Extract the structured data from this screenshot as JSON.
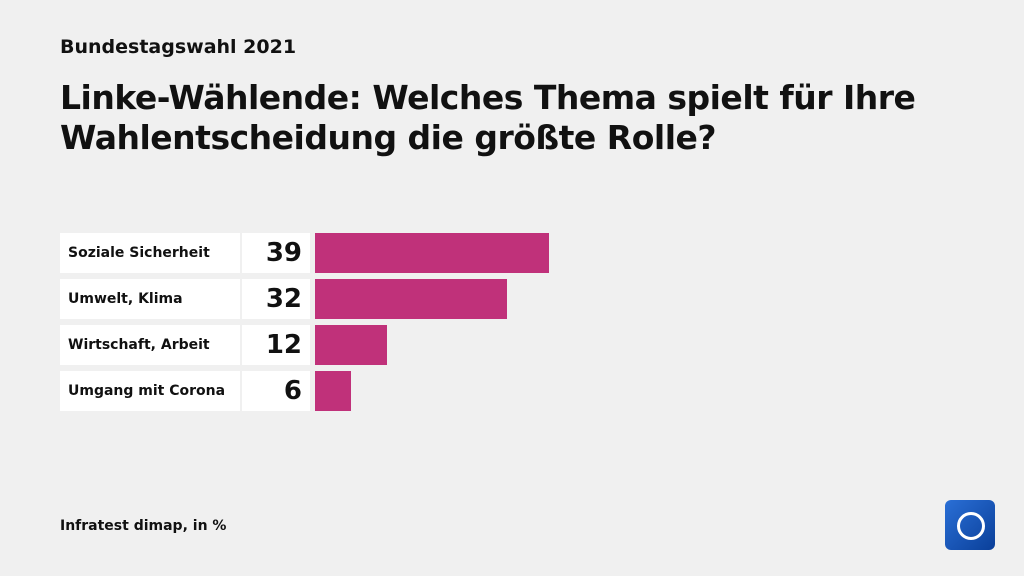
{
  "chart_data": {
    "type": "bar",
    "orientation": "horizontal",
    "subtitle": "Bundestagswahl 2021",
    "title": "Linke-Wählende: Welches Thema spielt für Ihre Wahlentscheidung die größte Rolle?",
    "categories": [
      "Soziale Sicherheit",
      "Umwelt, Klima",
      "Wirtschaft, Arbeit",
      "Umgang mit Corona"
    ],
    "values": [
      39,
      32,
      12,
      6
    ],
    "color": "#c0317a",
    "source": "Infratest dimap, in %"
  }
}
